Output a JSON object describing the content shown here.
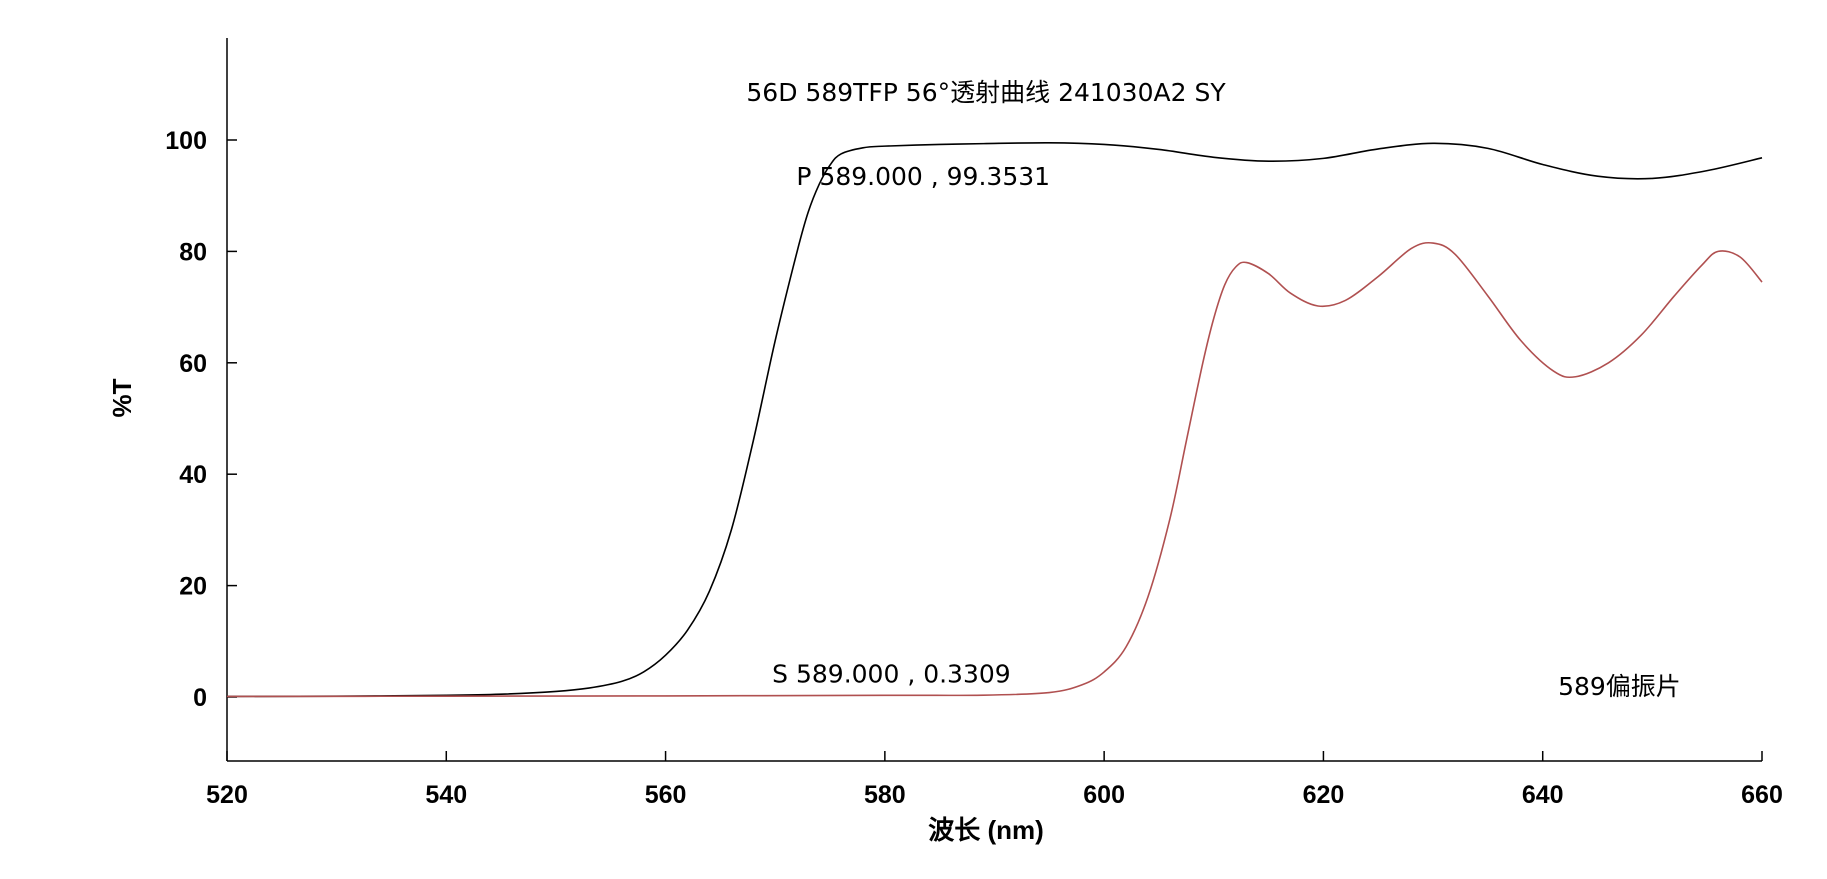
{
  "chart_data": {
    "type": "line",
    "title": "56D 589TFP 56°透射曲线 241030A2 SY",
    "xlabel": "波长 (nm)",
    "ylabel": "%T",
    "xlim": [
      520,
      660
    ],
    "ylim": [
      -11,
      118
    ],
    "x_ticks": [
      520,
      540,
      560,
      580,
      600,
      620,
      640,
      660
    ],
    "y_ticks": [
      0,
      20,
      40,
      60,
      80,
      100
    ],
    "grid": false,
    "series": [
      {
        "color": "#000000",
        "points": [
          [
            520,
            0.1
          ],
          [
            530,
            0.15
          ],
          [
            540,
            0.3
          ],
          [
            545,
            0.5
          ],
          [
            550,
            1.0
          ],
          [
            553,
            1.6
          ],
          [
            556,
            2.8
          ],
          [
            558,
            4.5
          ],
          [
            560,
            7.5
          ],
          [
            562,
            12
          ],
          [
            564,
            19
          ],
          [
            566,
            30
          ],
          [
            568,
            46
          ],
          [
            570,
            64
          ],
          [
            572,
            80
          ],
          [
            573,
            87
          ],
          [
            574,
            92
          ],
          [
            575,
            95.5
          ],
          [
            576,
            97.5
          ],
          [
            578,
            98.6
          ],
          [
            580,
            98.9
          ],
          [
            585,
            99.2
          ],
          [
            589,
            99.35
          ],
          [
            595,
            99.5
          ],
          [
            600,
            99.2
          ],
          [
            605,
            98.3
          ],
          [
            610,
            96.9
          ],
          [
            615,
            96.2
          ],
          [
            620,
            96.7
          ],
          [
            625,
            98.4
          ],
          [
            630,
            99.4
          ],
          [
            635,
            98.5
          ],
          [
            640,
            95.6
          ],
          [
            645,
            93.5
          ],
          [
            650,
            93.1
          ],
          [
            655,
            94.5
          ],
          [
            660,
            96.8
          ]
        ]
      },
      {
        "color": "#b05050",
        "points": [
          [
            520,
            0.1
          ],
          [
            540,
            0.15
          ],
          [
            560,
            0.2
          ],
          [
            580,
            0.3
          ],
          [
            589,
            0.33
          ],
          [
            595,
            0.8
          ],
          [
            598,
            2.2
          ],
          [
            600,
            4.5
          ],
          [
            602,
            9
          ],
          [
            604,
            18
          ],
          [
            606,
            32
          ],
          [
            607.5,
            46
          ],
          [
            609,
            60
          ],
          [
            610,
            68
          ],
          [
            611,
            74
          ],
          [
            612,
            77.2
          ],
          [
            613,
            78
          ],
          [
            615,
            76
          ],
          [
            617,
            72.5
          ],
          [
            619.5,
            70.2
          ],
          [
            622,
            71.2
          ],
          [
            625,
            75.5
          ],
          [
            628,
            80.5
          ],
          [
            630,
            81.5
          ],
          [
            632,
            79.5
          ],
          [
            635,
            72
          ],
          [
            638,
            64
          ],
          [
            641,
            58.5
          ],
          [
            643,
            57.5
          ],
          [
            646,
            60
          ],
          [
            649,
            65
          ],
          [
            652,
            72
          ],
          [
            654.5,
            77.5
          ],
          [
            656,
            80
          ],
          [
            658,
            79
          ],
          [
            660,
            74.5
          ]
        ]
      }
    ],
    "annotations": [
      {
        "text": "P  589.000 , 99.3531",
        "x": 583.5,
        "y": 93.5
      },
      {
        "text": "S  589.000 , 0.3309",
        "x": 580.6,
        "y": 4.2
      },
      {
        "text": "589偏振片",
        "x": 647,
        "y": 2.0
      }
    ]
  }
}
